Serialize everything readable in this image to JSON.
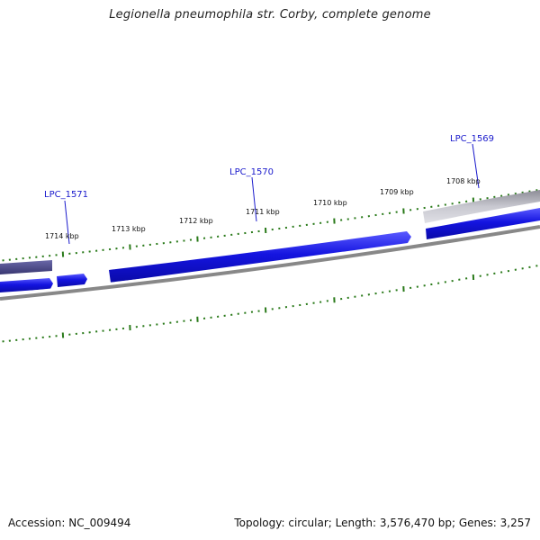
{
  "title": "Legionella pneumophila str. Corby, complete genome",
  "footer": {
    "accession": "Accession: NC_009494",
    "summary": "Topology: circular; Length: 3,576,470 bp; Genes: 3,257"
  },
  "ticks": {
    "labels": [
      "1714 kbp",
      "1713 kbp",
      "1712 kbp",
      "1711 kbp",
      "1710 kbp",
      "1709 kbp",
      "1708 kbp"
    ]
  },
  "genes": [
    {
      "name": "LPC_1571"
    },
    {
      "name": "LPC_1570"
    },
    {
      "name": "LPC_1569"
    }
  ],
  "colors": {
    "forward_gene": "#1010d8",
    "reverse_gene_dark": "#4a4888",
    "reverse_gene_light": "#b8b8c0",
    "backbone": "#888888",
    "tick": "#2a7a1a",
    "label": "#1a1acc"
  }
}
